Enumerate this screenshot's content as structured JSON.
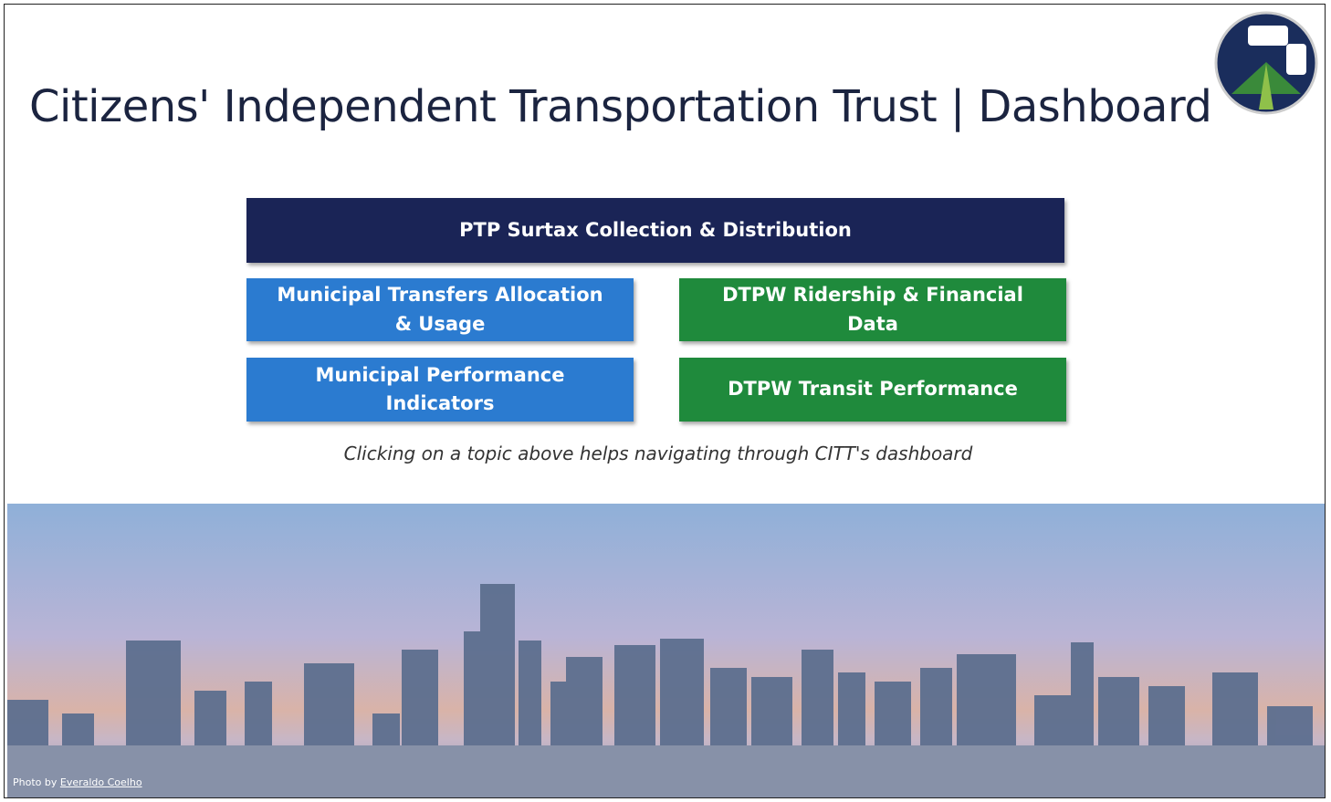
{
  "header": {
    "title": "Citizens' Independent Transportation Trust | Dashboard"
  },
  "navigation": {
    "main": "PTP Surtax Collection & Distribution",
    "buttons": [
      "Municipal Transfers Allocation & Usage",
      "DTPW Ridership & Financial Data",
      "Municipal Performance Indicators",
      "DTPW Transit Performance"
    ],
    "note": "Clicking on a topic above helps navigating through CITT's dashboard"
  },
  "photo_credit": {
    "prefix": "Photo by",
    "author": "Everaldo Coelho"
  }
}
